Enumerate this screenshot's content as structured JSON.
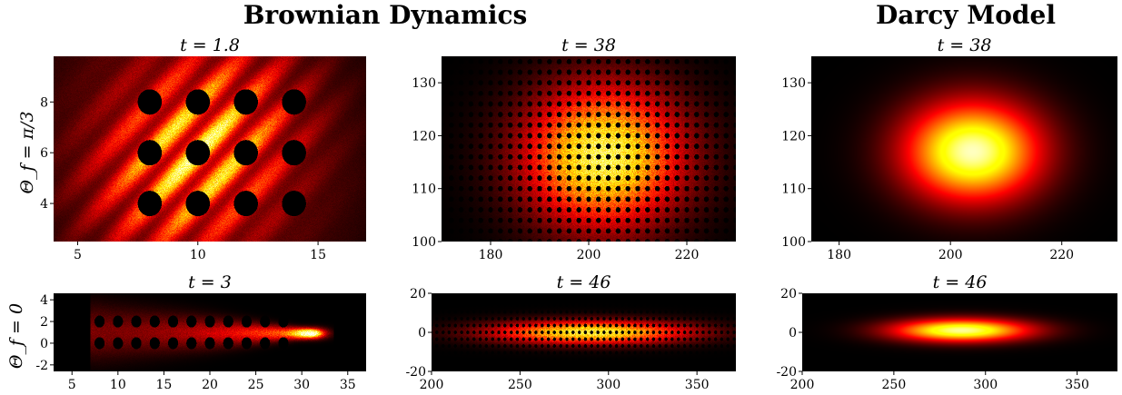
{
  "headings": {
    "brownian": "Brownian Dynamics",
    "darcy": "Darcy Model"
  },
  "row_labels": [
    "Θ_f = π/3",
    "Θ_f = 0"
  ],
  "chart_data": [
    {
      "type": "heatmap",
      "title": "t = 1.8",
      "group": "Brownian Dynamics",
      "row_label": "Θ_f = π/3",
      "xlim": [
        4,
        17
      ],
      "ylim": [
        2.5,
        9.8
      ],
      "xticks": [
        5,
        10,
        15
      ],
      "yticks": [
        4,
        6,
        8
      ],
      "colormap": "hot",
      "obstacles": {
        "x": [
          8,
          10,
          12,
          14
        ],
        "y": [
          4,
          6,
          8
        ],
        "radius": 0.5
      },
      "density": {
        "kind": "diagonal_streaks",
        "center": [
          10,
          6
        ]
      }
    },
    {
      "type": "heatmap",
      "title": "t = 38",
      "group": "Brownian Dynamics",
      "row_label": "Θ_f = π/3",
      "xlim": [
        170,
        230
      ],
      "ylim": [
        100,
        135
      ],
      "xticks": [
        180,
        200,
        220
      ],
      "yticks": [
        100,
        110,
        120,
        130
      ],
      "colormap": "hot",
      "obstacles": {
        "spacing": 2,
        "radius": 0.5
      },
      "density": {
        "kind": "gaussian",
        "center": [
          203,
          116
        ],
        "sigma": [
          11,
          9
        ],
        "peak": 0.85
      }
    },
    {
      "type": "heatmap",
      "title": "t = 38",
      "group": "Darcy Model",
      "row_label": "Θ_f = π/3",
      "xlim": [
        175,
        230
      ],
      "ylim": [
        100,
        135
      ],
      "xticks": [
        180,
        200,
        220
      ],
      "yticks": [
        100,
        110,
        120,
        130
      ],
      "colormap": "hot",
      "density": {
        "kind": "gaussian",
        "center": [
          204,
          117
        ],
        "sigma": [
          8.5,
          6.5
        ],
        "peak": 0.95
      }
    },
    {
      "type": "heatmap",
      "title": "t = 3",
      "group": "Brownian Dynamics",
      "row_label": "Θ_f = 0",
      "xlim": [
        3,
        37
      ],
      "ylim": [
        -2.6,
        4.6
      ],
      "xticks": [
        5,
        10,
        15,
        20,
        25,
        30,
        35
      ],
      "yticks": [
        -2,
        0,
        2,
        4
      ],
      "colormap": "hot",
      "obstacles": {
        "x": [
          8,
          10,
          12,
          14,
          16,
          18,
          20,
          22,
          24,
          26,
          28
        ],
        "y": [
          0,
          2
        ],
        "radius": 0.55
      },
      "density": {
        "kind": "comet",
        "head": [
          31,
          0.9
        ],
        "tail_start": 8
      }
    },
    {
      "type": "heatmap",
      "title": "t = 46",
      "group": "Brownian Dynamics",
      "row_label": "Θ_f = 0",
      "xlim": [
        200,
        372
      ],
      "ylim": [
        -20,
        20
      ],
      "xticks": [
        200,
        250,
        300,
        350
      ],
      "yticks": [
        -20,
        0,
        20
      ],
      "colormap": "hot",
      "obstacles": {
        "spacing": 3.5,
        "radius": 0.9
      },
      "density": {
        "kind": "gaussian",
        "center": [
          290,
          0
        ],
        "sigma": [
          38,
          4
        ],
        "peak": 0.8
      }
    },
    {
      "type": "heatmap",
      "title": "t = 46",
      "group": "Darcy Model",
      "row_label": "Θ_f = 0",
      "xlim": [
        200,
        372
      ],
      "ylim": [
        -20,
        20
      ],
      "xticks": [
        200,
        250,
        300,
        350
      ],
      "yticks": [
        -20,
        0,
        20
      ],
      "colormap": "hot",
      "density": {
        "kind": "gaussian",
        "center": [
          287,
          1
        ],
        "sigma": [
          26,
          4
        ],
        "peak": 0.92
      }
    }
  ]
}
